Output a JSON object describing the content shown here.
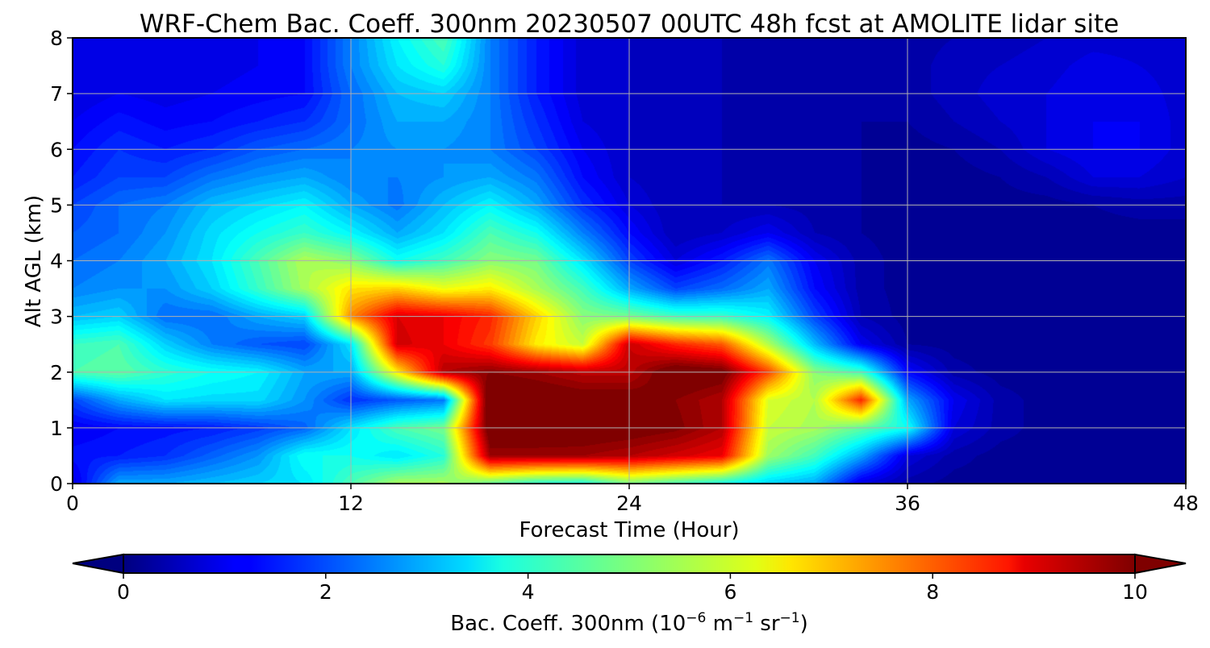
{
  "chart_data": {
    "type": "heatmap",
    "title": "WRF-Chem Bac. Coeff. 300nm  20230507 00UTC 48h fcst at AMOLITE lidar site",
    "xlabel": "Forecast Time (Hour)",
    "ylabel": "Alt AGL (km)",
    "xlim": [
      0,
      48
    ],
    "ylim": [
      0,
      8
    ],
    "xticks": [
      "0",
      "12",
      "24",
      "36",
      "48"
    ],
    "yticks": [
      "0",
      "1",
      "2",
      "3",
      "4",
      "5",
      "6",
      "7",
      "8"
    ],
    "grid": true,
    "colormap": "jet",
    "colorbar": {
      "label_prefix": "Bac. Coeff. 300nm  (10",
      "label_exp1": "−6",
      "label_mid": " m",
      "label_exp2": "−1",
      "label_mid2": " sr",
      "label_exp3": "−1",
      "label_suffix": ")",
      "range": [
        0,
        10
      ],
      "ticks": [
        "0",
        "2",
        "4",
        "6",
        "8",
        "10"
      ],
      "orientation": "horizontal",
      "extend": "both"
    },
    "x": [
      0,
      2,
      4,
      6,
      8,
      10,
      12,
      14,
      16,
      18,
      20,
      22,
      24,
      26,
      28,
      30,
      32,
      34,
      36,
      38,
      40,
      42,
      44,
      46,
      48
    ],
    "y": [
      0,
      0.5,
      1,
      1.5,
      2,
      2.5,
      3,
      3.5,
      4,
      4.5,
      5,
      5.5,
      6,
      6.5,
      7,
      7.5,
      8
    ],
    "z": [
      [
        1.0,
        3.0,
        3.0,
        3.2,
        3.4,
        3.6,
        4.6,
        5.5,
        5.5,
        4.8,
        4.2,
        4.0,
        5.0,
        4.5,
        4.0,
        3.4,
        3.0,
        1.0,
        0.5,
        0.3,
        0.3,
        0.3,
        0.3,
        0.3,
        0.3
      ],
      [
        1.5,
        1.6,
        1.8,
        2.3,
        2.8,
        4.0,
        4.0,
        3.6,
        4.2,
        9.8,
        9.8,
        9.8,
        9.6,
        9.3,
        9.0,
        5.4,
        4.5,
        3.0,
        1.0,
        0.5,
        0.3,
        0.3,
        0.3,
        0.3,
        0.3
      ],
      [
        1.2,
        1.4,
        1.5,
        1.6,
        1.9,
        2.3,
        3.6,
        4.6,
        5.0,
        10.5,
        10.5,
        10.4,
        10.3,
        10.1,
        9.6,
        5.8,
        5.5,
        4.8,
        4.0,
        1.0,
        0.5,
        0.3,
        0.3,
        0.3,
        0.3
      ],
      [
        2.0,
        3.0,
        3.6,
        3.5,
        3.5,
        2.8,
        1.8,
        2.2,
        2.5,
        10.8,
        10.5,
        10.3,
        10.3,
        10.0,
        9.6,
        6.0,
        5.6,
        8.5,
        3.0,
        1.2,
        0.5,
        0.3,
        0.3,
        0.3,
        0.3
      ],
      [
        4.6,
        4.8,
        4.3,
        4.0,
        3.8,
        3.0,
        3.0,
        6.5,
        9.6,
        10.0,
        9.8,
        9.5,
        9.5,
        10.5,
        10.3,
        8.2,
        5.2,
        4.5,
        1.4,
        0.5,
        0.3,
        0.3,
        0.3,
        0.3,
        0.3
      ],
      [
        4.4,
        4.6,
        3.4,
        2.6,
        2.2,
        2.0,
        3.6,
        9.3,
        9.0,
        8.3,
        6.5,
        5.8,
        9.4,
        8.5,
        8.0,
        5.6,
        3.2,
        1.2,
        0.4,
        0.3,
        0.3,
        0.3,
        0.3,
        0.3,
        0.3
      ],
      [
        3.2,
        3.4,
        2.4,
        2.4,
        3.0,
        3.4,
        7.5,
        9.2,
        9.0,
        8.5,
        6.8,
        5.2,
        5.0,
        4.5,
        4.4,
        3.8,
        2.0,
        0.6,
        0.3,
        0.3,
        0.3,
        0.3,
        0.3,
        0.3,
        0.3
      ],
      [
        2.6,
        2.8,
        2.8,
        3.4,
        4.4,
        5.5,
        6.6,
        6.8,
        6.2,
        6.5,
        5.5,
        4.5,
        3.0,
        2.0,
        2.4,
        3.0,
        1.4,
        0.5,
        0.3,
        0.3,
        0.3,
        0.3,
        0.3,
        0.3,
        0.3
      ],
      [
        2.4,
        2.6,
        3.0,
        3.6,
        4.6,
        5.6,
        5.2,
        4.0,
        4.5,
        5.2,
        5.0,
        3.6,
        2.0,
        1.0,
        1.6,
        2.5,
        1.2,
        0.5,
        0.3,
        0.3,
        0.3,
        0.3,
        0.3,
        0.3,
        0.3
      ],
      [
        2.2,
        2.4,
        2.8,
        3.5,
        4.0,
        4.4,
        3.8,
        3.0,
        3.6,
        4.6,
        4.0,
        2.6,
        1.4,
        0.6,
        0.8,
        1.2,
        0.6,
        0.4,
        0.3,
        0.3,
        0.3,
        0.3,
        0.3,
        0.3,
        0.3
      ],
      [
        2.0,
        2.4,
        2.6,
        3.2,
        3.5,
        3.8,
        3.0,
        2.5,
        3.2,
        3.8,
        3.0,
        1.8,
        1.0,
        0.6,
        0.6,
        0.6,
        0.5,
        0.4,
        0.3,
        0.3,
        0.3,
        0.3,
        0.4,
        0.5,
        0.5
      ],
      [
        1.6,
        2.0,
        2.0,
        2.5,
        2.8,
        3.0,
        2.6,
        2.6,
        2.8,
        3.0,
        2.5,
        1.4,
        0.8,
        0.6,
        0.6,
        0.5,
        0.4,
        0.4,
        0.3,
        0.3,
        0.4,
        0.6,
        1.0,
        1.0,
        0.8
      ],
      [
        1.4,
        1.8,
        1.6,
        1.8,
        2.2,
        2.4,
        2.6,
        2.8,
        2.8,
        2.6,
        2.0,
        1.2,
        0.8,
        0.6,
        0.6,
        0.5,
        0.4,
        0.4,
        0.3,
        0.4,
        0.6,
        1.0,
        1.2,
        1.2,
        0.9
      ],
      [
        1.2,
        1.5,
        1.3,
        1.4,
        1.6,
        1.8,
        2.4,
        3.0,
        3.0,
        2.6,
        1.8,
        1.0,
        0.8,
        0.6,
        0.6,
        0.5,
        0.4,
        0.4,
        0.4,
        0.6,
        0.8,
        1.0,
        1.2,
        1.2,
        0.9
      ],
      [
        1.0,
        1.2,
        1.1,
        1.2,
        1.3,
        1.4,
        2.4,
        3.2,
        3.4,
        2.6,
        1.6,
        0.9,
        0.8,
        0.6,
        0.6,
        0.5,
        0.4,
        0.4,
        0.5,
        0.7,
        0.9,
        1.0,
        1.2,
        1.1,
        0.9
      ],
      [
        1.0,
        1.1,
        1.0,
        1.1,
        1.2,
        1.4,
        2.6,
        3.6,
        4.2,
        2.6,
        1.6,
        0.9,
        0.8,
        0.6,
        0.6,
        0.5,
        0.4,
        0.4,
        0.5,
        0.7,
        0.8,
        0.9,
        1.1,
        1.0,
        0.9
      ],
      [
        1.0,
        1.1,
        1.0,
        1.0,
        1.2,
        1.4,
        2.6,
        3.8,
        4.6,
        2.6,
        1.6,
        0.9,
        0.8,
        0.6,
        0.6,
        0.5,
        0.4,
        0.4,
        0.5,
        0.6,
        0.7,
        0.8,
        0.9,
        0.9,
        0.9
      ]
    ]
  }
}
